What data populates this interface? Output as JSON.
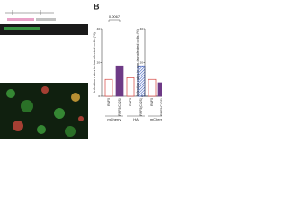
{
  "panel_label": "B",
  "chart_data": [
    {
      "type": "bar",
      "ylabel": "Infection rates in transfected cells (%)",
      "categories": [
        "RNF5",
        "RNF5(C42S)",
        "RNF5",
        "RNF5(C42S)"
      ],
      "groups": [
        "mCherry",
        "HA"
      ],
      "values": [
        10,
        18,
        11,
        18
      ],
      "colors": [
        "#d64541",
        "#6e3a86",
        "#d64541",
        "#3f5fbf"
      ],
      "styles": [
        "outline",
        "solid",
        "outline",
        "hatch"
      ],
      "ylim": [
        0,
        40
      ],
      "yticks": [
        0,
        20,
        40
      ],
      "annotation": "0.0067"
    },
    {
      "type": "bar",
      "ylabel": "Infection rates in non-transfected cells (%)",
      "categories": [
        "RNF5",
        "RNF5(C42S)"
      ],
      "groups": [
        "mCherry"
      ],
      "values": [
        10,
        8
      ],
      "colors": [
        "#d64541",
        "#6e3a86"
      ],
      "styles": [
        "outline",
        "solid"
      ],
      "ylim": [
        0,
        40
      ],
      "yticks": [
        0,
        20,
        40
      ]
    }
  ]
}
